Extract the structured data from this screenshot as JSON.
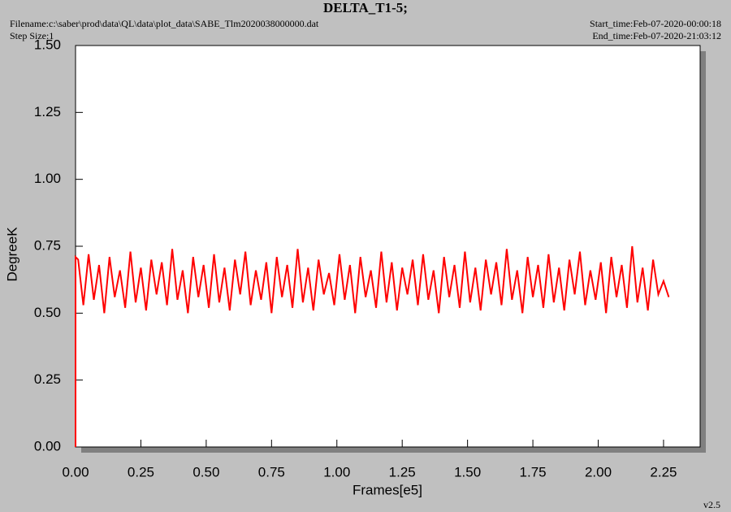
{
  "chart_data": {
    "type": "line",
    "title": "DELTA_T1-5;",
    "filename": "Filename:c:\\saber\\prod\\data\\QL\\data\\plot_data\\SABE_Tlm2020038000000.dat",
    "step_size": "Step Size:1",
    "start_time": "Start_time:Feb-07-2020-00:00:18",
    "end_time": "End_time:Feb-07-2020-21:03:12",
    "version": "v2.5",
    "xlabel": "Frames[e5]",
    "ylabel": "DegreeK",
    "xlim": [
      0,
      2.39
    ],
    "ylim": [
      0,
      1.5
    ],
    "xticks": [
      {
        "value": 0,
        "label": "0.00"
      },
      {
        "value": 0.25,
        "label": "0.25"
      },
      {
        "value": 0.5,
        "label": "0.50"
      },
      {
        "value": 0.75,
        "label": "0.75"
      },
      {
        "value": 1,
        "label": "1.00"
      },
      {
        "value": 1.25,
        "label": "1.25"
      },
      {
        "value": 1.5,
        "label": "1.50"
      },
      {
        "value": 1.75,
        "label": "1.75"
      },
      {
        "value": 2,
        "label": "2.00"
      },
      {
        "value": 2.25,
        "label": "2.25"
      }
    ],
    "yticks": [
      {
        "value": 0,
        "label": "0.00"
      },
      {
        "value": 0.25,
        "label": "0.25"
      },
      {
        "value": 0.5,
        "label": "0.50"
      },
      {
        "value": 0.75,
        "label": "0.75"
      },
      {
        "value": 1,
        "label": "1.00"
      },
      {
        "value": 1.25,
        "label": "1.25"
      },
      {
        "value": 1.5,
        "label": "1.50"
      }
    ],
    "x": [
      0,
      0,
      0.01,
      0.03,
      0.05,
      0.07,
      0.09,
      0.11,
      0.13,
      0.15,
      0.17,
      0.19,
      0.21,
      0.23,
      0.25,
      0.27,
      0.29,
      0.31,
      0.33,
      0.35,
      0.37,
      0.39,
      0.41,
      0.43,
      0.45,
      0.47,
      0.49,
      0.51,
      0.53,
      0.55,
      0.57,
      0.59,
      0.61,
      0.63,
      0.65,
      0.67,
      0.69,
      0.71,
      0.73,
      0.75,
      0.77,
      0.79,
      0.81,
      0.83,
      0.85,
      0.87,
      0.89,
      0.91,
      0.93,
      0.95,
      0.97,
      0.99,
      1.01,
      1.03,
      1.05,
      1.07,
      1.09,
      1.11,
      1.13,
      1.15,
      1.17,
      1.19,
      1.21,
      1.23,
      1.25,
      1.27,
      1.29,
      1.31,
      1.33,
      1.35,
      1.37,
      1.39,
      1.41,
      1.43,
      1.45,
      1.47,
      1.49,
      1.51,
      1.53,
      1.55,
      1.57,
      1.59,
      1.61,
      1.63,
      1.65,
      1.67,
      1.69,
      1.71,
      1.73,
      1.75,
      1.77,
      1.79,
      1.81,
      1.83,
      1.85,
      1.87,
      1.89,
      1.91,
      1.93,
      1.95,
      1.97,
      1.99,
      2.01,
      2.03,
      2.05,
      2.07,
      2.09,
      2.11,
      2.13,
      2.15,
      2.17,
      2.19,
      2.21,
      2.23,
      2.25,
      2.27
    ],
    "series": [
      {
        "name": "DELTA_T1-5",
        "color": "#ff0000",
        "values": [
          0,
          0.71,
          0.7,
          0.53,
          0.72,
          0.55,
          0.68,
          0.5,
          0.71,
          0.56,
          0.66,
          0.52,
          0.73,
          0.54,
          0.67,
          0.51,
          0.7,
          0.57,
          0.69,
          0.53,
          0.74,
          0.55,
          0.66,
          0.5,
          0.71,
          0.56,
          0.68,
          0.52,
          0.72,
          0.54,
          0.67,
          0.51,
          0.7,
          0.57,
          0.73,
          0.53,
          0.66,
          0.55,
          0.69,
          0.5,
          0.71,
          0.56,
          0.68,
          0.52,
          0.74,
          0.54,
          0.67,
          0.51,
          0.7,
          0.57,
          0.65,
          0.53,
          0.72,
          0.55,
          0.68,
          0.5,
          0.71,
          0.56,
          0.66,
          0.52,
          0.73,
          0.54,
          0.69,
          0.51,
          0.67,
          0.57,
          0.7,
          0.53,
          0.72,
          0.55,
          0.66,
          0.5,
          0.71,
          0.56,
          0.68,
          0.52,
          0.73,
          0.54,
          0.67,
          0.51,
          0.7,
          0.57,
          0.69,
          0.53,
          0.74,
          0.55,
          0.66,
          0.5,
          0.71,
          0.56,
          0.68,
          0.52,
          0.72,
          0.54,
          0.67,
          0.51,
          0.7,
          0.57,
          0.73,
          0.53,
          0.66,
          0.55,
          0.69,
          0.5,
          0.71,
          0.56,
          0.68,
          0.52,
          0.75,
          0.54,
          0.67,
          0.51,
          0.7,
          0.57,
          0.62,
          0.56
        ]
      }
    ]
  }
}
